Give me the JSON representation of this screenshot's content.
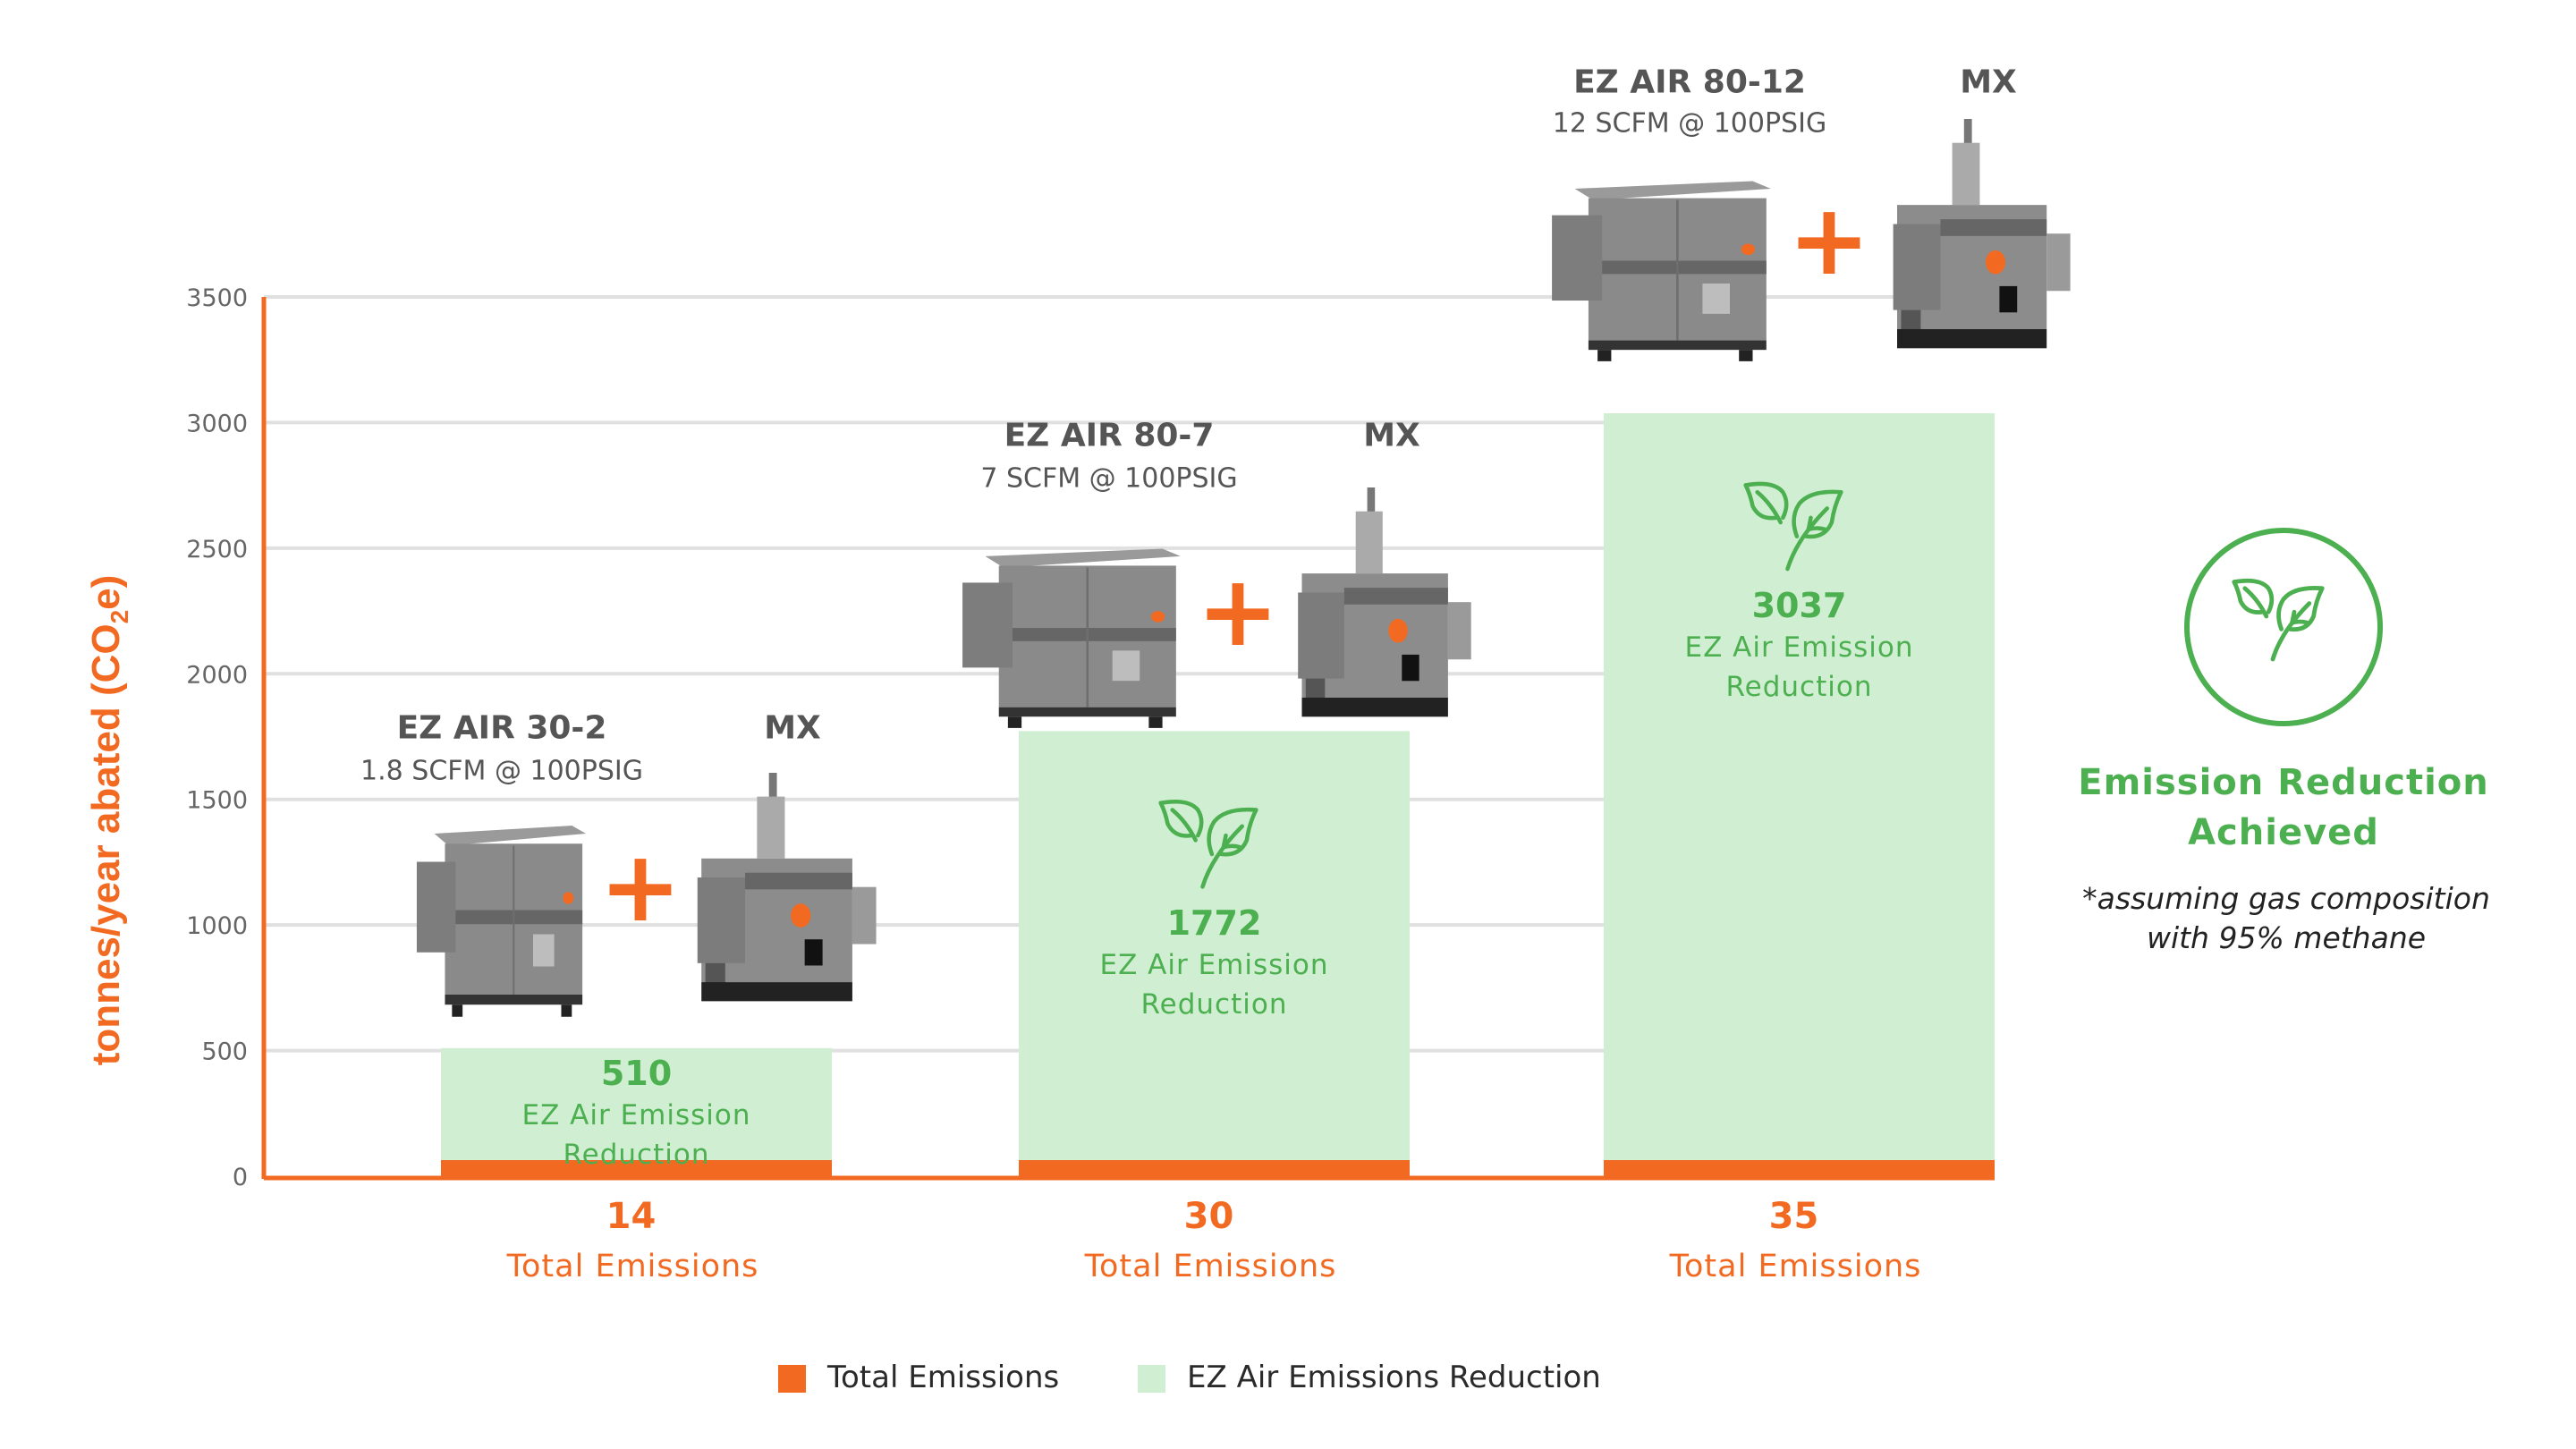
{
  "chart_data": {
    "type": "bar",
    "stacked": true,
    "ylabel": "tonnes/year abated (CO2e)",
    "ylim": [
      0,
      3500
    ],
    "yticks": [
      "0",
      "500",
      "1000",
      "1500",
      "2000",
      "2500",
      "3000",
      "3500"
    ],
    "grid": true,
    "legend_position": "bottom",
    "categories": [
      "EZ AIR 30-2 + MX",
      "EZ AIR 80-7 + MX",
      "EZ AIR 80-12 + MX"
    ],
    "series": [
      {
        "name": "Total Emissions",
        "color": "#f26a21",
        "values": [
          14,
          30,
          35
        ]
      },
      {
        "name": "EZ Air Emissions Reduction",
        "color": "#d0eed1",
        "values": [
          510,
          1772,
          3037
        ]
      }
    ],
    "bar_labels": {
      "reduction_text_line1": "EZ Air Emission",
      "reduction_text_line2": "Reduction",
      "total_text": "Total Emissions"
    }
  },
  "products": [
    {
      "ez_name": "EZ AIR 30-2",
      "ez_spec": "1.8 SCFM @ 100PSIG",
      "mx_name": "MX"
    },
    {
      "ez_name": "EZ AIR 80-7",
      "ez_spec": "7 SCFM @ 100PSIG",
      "mx_name": "MX"
    },
    {
      "ez_name": "EZ AIR 80-12",
      "ez_spec": "12 SCFM @ 100PSIG",
      "mx_name": "MX"
    }
  ],
  "plus_symbol": "+",
  "ylabel_parts": {
    "pre": "tonnes/year abated (CO",
    "sub": "2",
    "post": "e)"
  },
  "side_panel": {
    "icon": "leaf-circle-icon",
    "title_line1": "Emission Reduction",
    "title_line2": "Achieved",
    "note_line1": "*assuming gas composition",
    "note_line2": "with 95% methane"
  },
  "legend": [
    {
      "label": "Total Emissions",
      "color": "#f26a21"
    },
    {
      "label": "EZ Air Emissions Reduction",
      "color": "#d0eed1"
    }
  ],
  "colors": {
    "accent": "#f26a21",
    "green": "#4caf50",
    "green_fill": "#d0eed1",
    "grid": "#e0e0e0"
  }
}
